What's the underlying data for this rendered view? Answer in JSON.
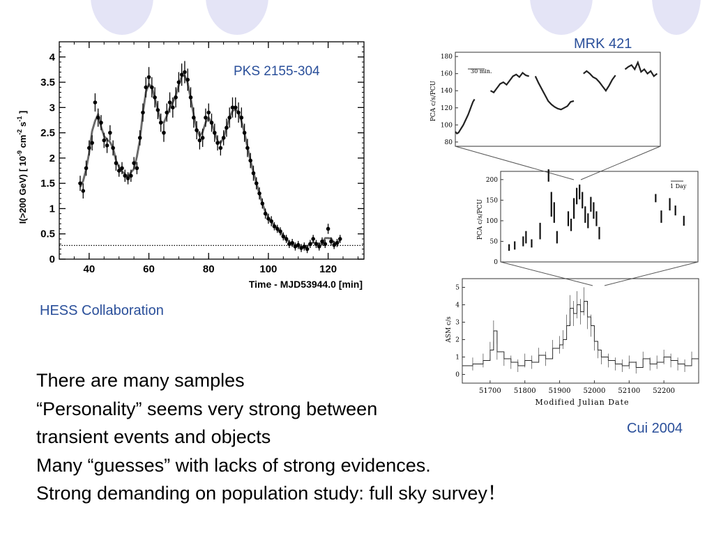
{
  "left_figure": {
    "source_label": "PKS 2155-304",
    "credit": "HESS Collaboration",
    "ylabel": "I(>200 GeV) [ 10^-9 cm^-2 s^-1 ]",
    "ylabel_parts": [
      "I(>200 GeV) [ 10",
      "-9",
      " cm",
      "-2",
      " s",
      "-1",
      " ]"
    ],
    "xlabel": "Time - MJD53944.0 [min]"
  },
  "right_figure": {
    "source_label": "MRK 421",
    "credit": "Cui 2004",
    "top_panel": {
      "ylabel": "PCA c/s/PCU",
      "scale_label": "30 min."
    },
    "middle_panel": {
      "ylabel": "PCA c/s/PCU",
      "scale_label": "1 Day"
    },
    "bottom_panel": {
      "ylabel": "ASM c/s",
      "xlabel": "Modified Julian Date"
    }
  },
  "bullets": [
    "There are many samples",
    "“Personality” seems very strong between",
    "transient  events and objects",
    "Many “guesses” with lacks of strong evidences.",
    "Strong demanding on population study: full sky survey！"
  ],
  "chart_data": [
    {
      "type": "scatter",
      "title": "PKS 2155-304",
      "xlabel": "Time - MJD53944.0 [min]",
      "ylabel": "I(>200 GeV) [ 10^-9 cm^-2 s^-1 ]",
      "xlim": [
        30,
        132
      ],
      "ylim": [
        0,
        4.3
      ],
      "x_ticks": [
        40,
        60,
        80,
        100,
        120
      ],
      "y_ticks": [
        0,
        0.5,
        1,
        1.5,
        2,
        2.5,
        3,
        3.5,
        4
      ],
      "baseline": 0.27,
      "series": [
        {
          "x": [
            37,
            38,
            39,
            40,
            41,
            42,
            43,
            44,
            45,
            46,
            47,
            48,
            49,
            50,
            51,
            52,
            53,
            54,
            55,
            56,
            57,
            58,
            59,
            60,
            61,
            62,
            63,
            64,
            65,
            66,
            67,
            68,
            69,
            70,
            71,
            72,
            73,
            74,
            75,
            76,
            77,
            78,
            79,
            80,
            81,
            82,
            83,
            84,
            85,
            86,
            87,
            88,
            89,
            90,
            91,
            92,
            93,
            94,
            95,
            96,
            97,
            98,
            99,
            100,
            101,
            102,
            103,
            104,
            105,
            106,
            107,
            108,
            109,
            110,
            111,
            112,
            113,
            114,
            115,
            116,
            117,
            118,
            119,
            120,
            121,
            122,
            123,
            124
          ],
          "y": [
            1.5,
            1.35,
            1.8,
            2.2,
            2.3,
            3.1,
            2.8,
            2.7,
            2.35,
            2.25,
            2.5,
            2.2,
            1.9,
            1.75,
            1.8,
            1.65,
            1.6,
            1.65,
            1.9,
            1.8,
            2.4,
            2.9,
            3.4,
            3.6,
            3.4,
            3.2,
            2.95,
            2.7,
            2.5,
            2.9,
            3.1,
            3.0,
            3.2,
            3.5,
            3.65,
            3.7,
            3.55,
            3.2,
            2.8,
            2.55,
            2.35,
            2.4,
            2.8,
            2.9,
            2.7,
            2.5,
            2.3,
            2.2,
            2.4,
            2.6,
            2.8,
            3.0,
            3.0,
            2.9,
            2.8,
            2.5,
            2.2,
            1.95,
            1.7,
            1.5,
            1.3,
            1.1,
            0.9,
            0.8,
            0.75,
            0.65,
            0.6,
            0.55,
            0.45,
            0.4,
            0.3,
            0.32,
            0.25,
            0.28,
            0.22,
            0.25,
            0.2,
            0.3,
            0.4,
            0.3,
            0.25,
            0.35,
            0.3,
            0.6,
            0.35,
            0.28,
            0.32,
            0.4
          ],
          "errors": [
            0.15,
            0.15,
            0.15,
            0.15,
            0.15,
            0.18,
            0.18,
            0.15,
            0.15,
            0.15,
            0.15,
            0.15,
            0.15,
            0.12,
            0.12,
            0.12,
            0.12,
            0.12,
            0.12,
            0.12,
            0.15,
            0.18,
            0.2,
            0.2,
            0.2,
            0.2,
            0.18,
            0.18,
            0.18,
            0.18,
            0.2,
            0.2,
            0.2,
            0.2,
            0.22,
            0.22,
            0.22,
            0.2,
            0.2,
            0.18,
            0.18,
            0.18,
            0.18,
            0.18,
            0.18,
            0.18,
            0.15,
            0.15,
            0.15,
            0.18,
            0.2,
            0.2,
            0.2,
            0.2,
            0.2,
            0.18,
            0.18,
            0.15,
            0.15,
            0.12,
            0.12,
            0.1,
            0.1,
            0.1,
            0.1,
            0.08,
            0.08,
            0.08,
            0.08,
            0.08,
            0.08,
            0.08,
            0.08,
            0.08,
            0.08,
            0.08,
            0.08,
            0.08,
            0.08,
            0.08,
            0.08,
            0.08,
            0.08,
            0.1,
            0.08,
            0.08,
            0.08,
            0.08
          ]
        }
      ]
    },
    {
      "type": "line",
      "title": "MRK 421",
      "panel": "top",
      "ylabel": "PCA c/s/PCU",
      "ylim": [
        75,
        185
      ],
      "y_ticks": [
        80,
        100,
        120,
        140,
        160,
        180
      ],
      "segments": [
        {
          "x": [
            0,
            1,
            2,
            3,
            4,
            5,
            6,
            7,
            8,
            9,
            10,
            11,
            12
          ],
          "y": [
            92,
            90,
            91,
            94,
            97,
            100,
            104,
            108,
            112,
            117,
            122,
            127,
            130
          ]
        },
        {
          "x": [
            22,
            24,
            26,
            28,
            30,
            32,
            34,
            36,
            38,
            40,
            42,
            44,
            46
          ],
          "y": [
            140,
            138,
            143,
            148,
            150,
            147,
            152,
            157,
            159,
            156,
            161,
            158,
            157
          ]
        },
        {
          "x": [
            50,
            52,
            54,
            56,
            58,
            60,
            62,
            64,
            66,
            68,
            70,
            72,
            74
          ],
          "y": [
            157,
            149,
            142,
            135,
            128,
            124,
            121,
            119,
            118,
            120,
            122,
            127,
            128
          ]
        },
        {
          "x": [
            80,
            82,
            84,
            86,
            88,
            90,
            92,
            94,
            96,
            98,
            100
          ],
          "y": [
            160,
            163,
            160,
            156,
            154,
            150,
            145,
            140,
            146,
            153,
            158
          ]
        },
        {
          "x": [
            106,
            108,
            110,
            112,
            114,
            116,
            118,
            120,
            122,
            124,
            126
          ],
          "y": [
            165,
            168,
            170,
            165,
            173,
            162,
            165,
            160,
            163,
            157,
            160
          ]
        }
      ]
    },
    {
      "type": "scatter",
      "title": "MRK 421",
      "panel": "middle",
      "ylabel": "PCA c/s/PCU",
      "ylim": [
        0,
        220
      ],
      "y_ticks": [
        0,
        50,
        100,
        150,
        200
      ],
      "x": [
        3,
        5,
        8,
        9,
        11,
        14,
        17,
        18,
        19,
        20,
        24,
        25,
        26,
        27,
        28,
        29,
        30,
        31,
        32,
        33,
        34,
        35,
        55,
        57,
        60,
        62,
        65
      ],
      "y": [
        35,
        40,
        50,
        60,
        45,
        75,
        210,
        140,
        120,
        60,
        105,
        90,
        130,
        160,
        170,
        150,
        115,
        100,
        140,
        125,
        105,
        70,
        155,
        110,
        140,
        125,
        100
      ],
      "errors": [
        8,
        10,
        12,
        15,
        10,
        20,
        15,
        30,
        25,
        15,
        18,
        15,
        25,
        20,
        18,
        20,
        20,
        18,
        18,
        20,
        18,
        15,
        10,
        15,
        15,
        12,
        12
      ]
    },
    {
      "type": "line",
      "title": "MRK 421",
      "panel": "bottom",
      "xlabel": "Modified Julian Date",
      "ylabel": "ASM c/s",
      "xlim": [
        51620,
        52300
      ],
      "ylim": [
        -0.5,
        5.5
      ],
      "x_ticks": [
        51700,
        51800,
        51900,
        52000,
        52100,
        52200
      ],
      "y_ticks": [
        0,
        1,
        2,
        3,
        4,
        5
      ],
      "x": [
        51620,
        51650,
        51680,
        51700,
        51710,
        51720,
        51740,
        51760,
        51780,
        51800,
        51820,
        51840,
        51860,
        51880,
        51900,
        51910,
        51920,
        51930,
        51940,
        51950,
        51960,
        51970,
        51980,
        51990,
        52000,
        52010,
        52020,
        52040,
        52060,
        52080,
        52100,
        52120,
        52140,
        52160,
        52180,
        52200,
        52220,
        52240,
        52260,
        52280,
        52300
      ],
      "y": [
        0.5,
        0.6,
        0.8,
        1.4,
        2.5,
        1.3,
        0.9,
        0.7,
        0.5,
        0.8,
        0.7,
        1.1,
        0.9,
        1.5,
        1.7,
        2.0,
        2.8,
        3.8,
        3.5,
        4.0,
        3.6,
        4.2,
        3.3,
        2.8,
        1.9,
        1.4,
        1.0,
        0.8,
        0.6,
        0.5,
        0.7,
        0.4,
        0.9,
        0.6,
        0.7,
        1.0,
        0.8,
        0.6,
        0.5,
        0.9,
        0.6
      ]
    }
  ]
}
